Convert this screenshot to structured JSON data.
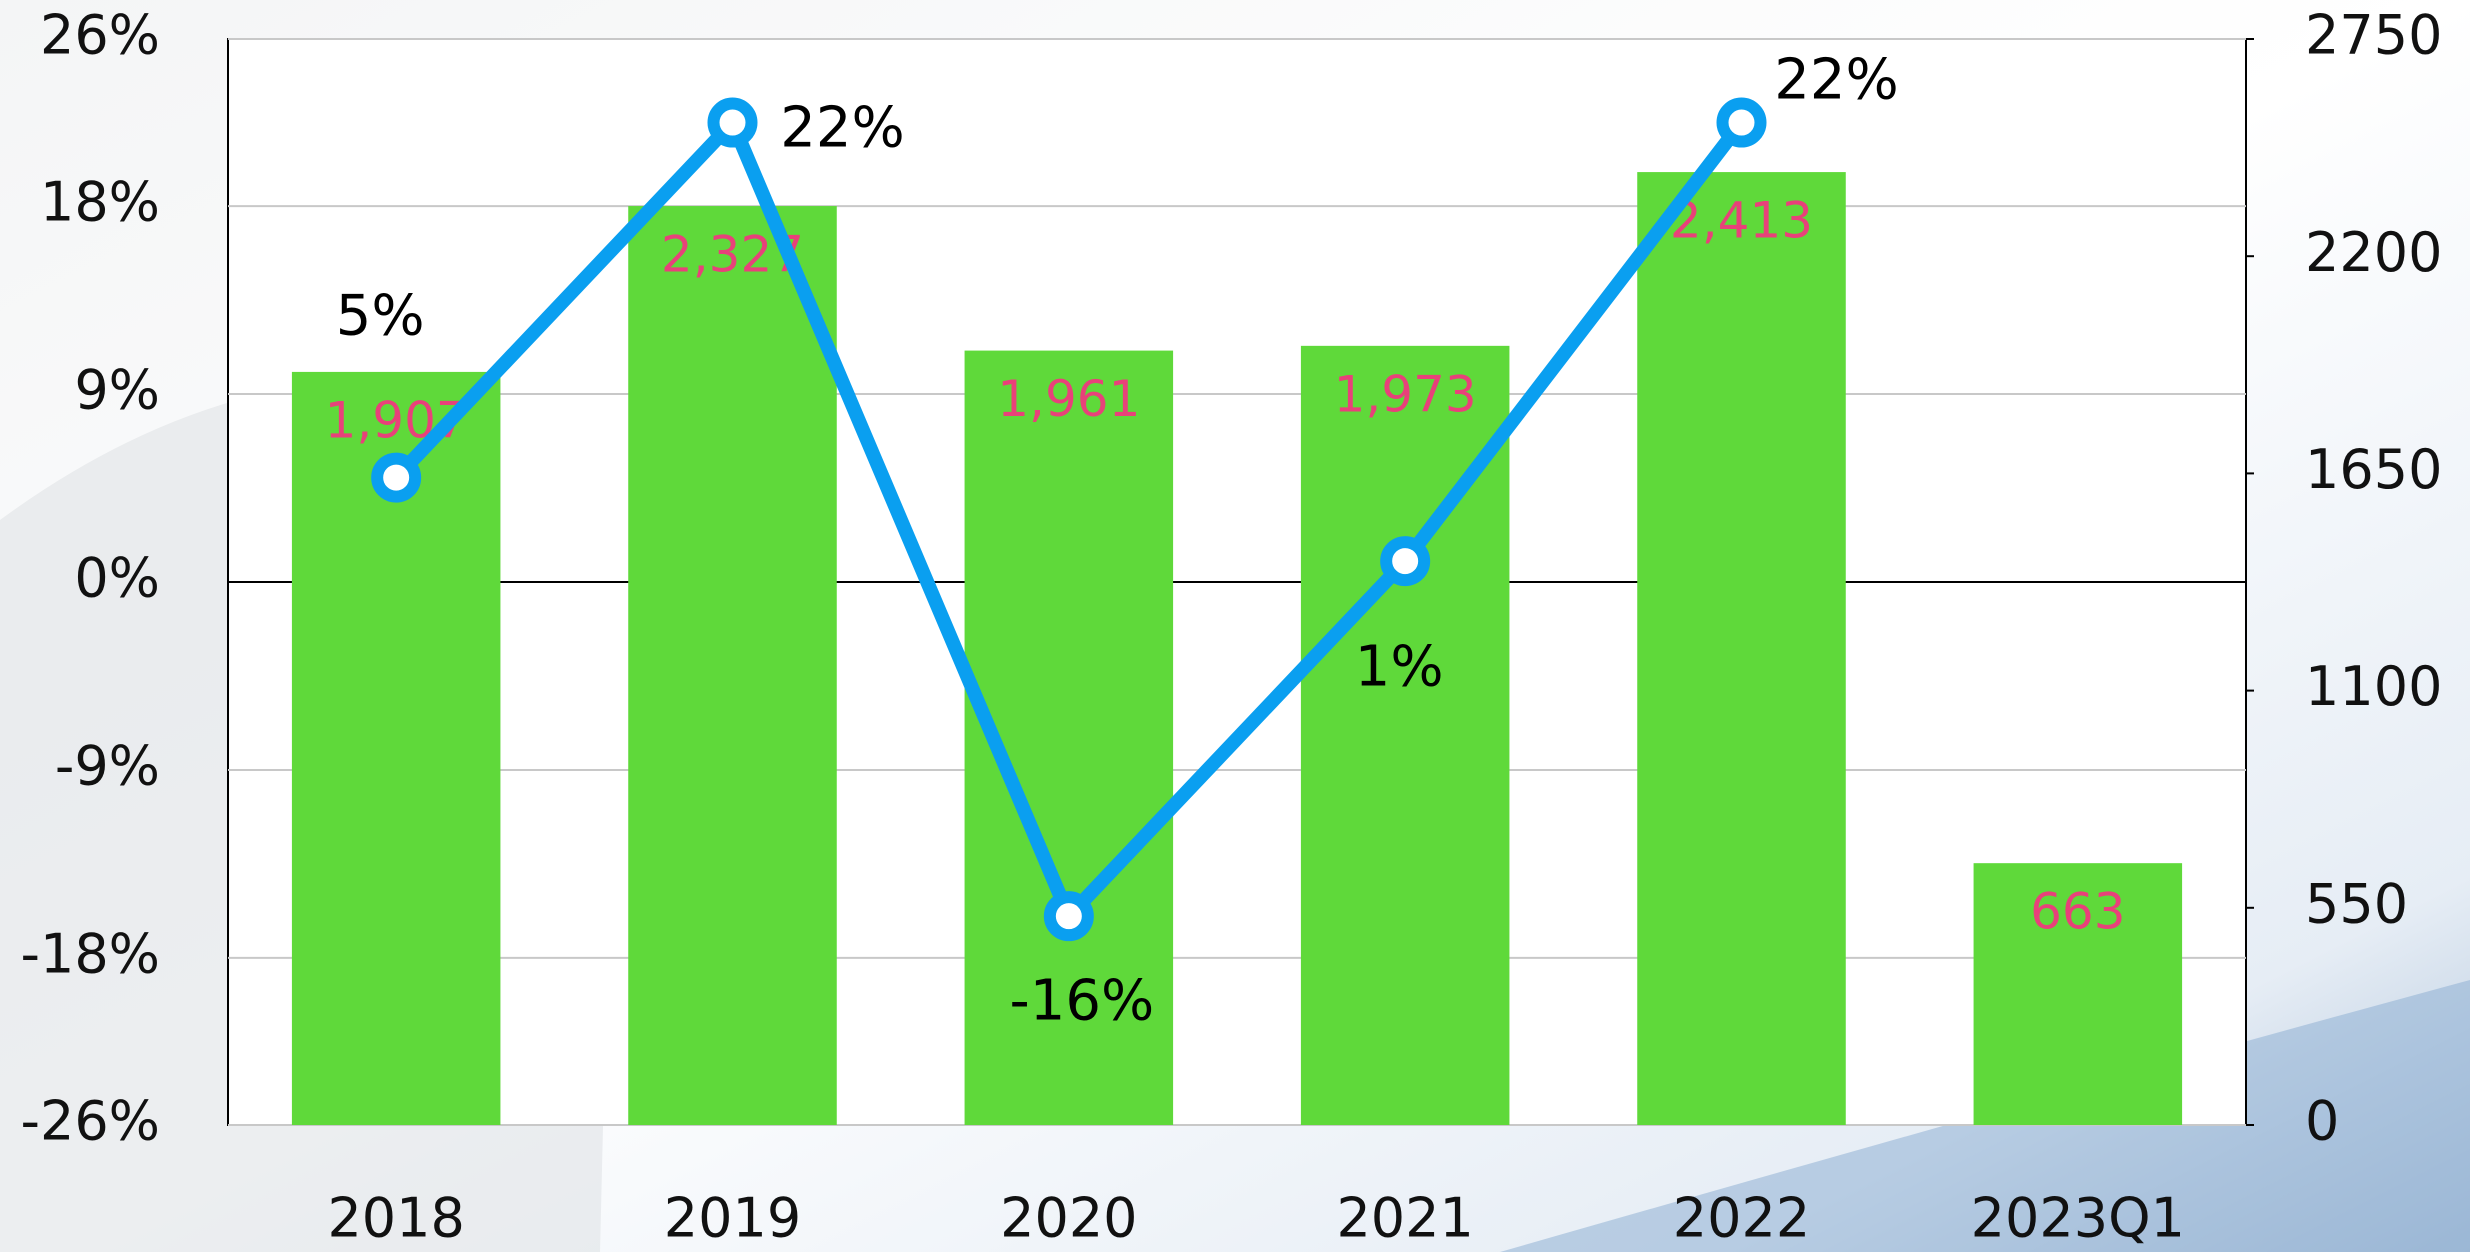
{
  "chart_data": {
    "type": "bar",
    "categories": [
      "2018",
      "2019",
      "2020",
      "2021",
      "2022",
      "2023Q1"
    ],
    "ylim": [
      -26,
      26
    ],
    "yticks": [
      {
        "value": 26,
        "label": "26%"
      },
      {
        "value": 18,
        "label": "18%"
      },
      {
        "value": 9,
        "label": "9%"
      },
      {
        "value": 0,
        "label": "0%"
      },
      {
        "value": -9,
        "label": "-9%"
      },
      {
        "value": -18,
        "label": "-18%"
      },
      {
        "value": -26,
        "label": "-26%"
      }
    ],
    "y2lim": [
      0,
      2750
    ],
    "y2ticks": [
      2750,
      2200,
      1650,
      1100,
      550,
      0
    ],
    "grid": true,
    "series": [
      {
        "type": "bar",
        "axis": "y2",
        "color": "#5fd93a",
        "label_color": "#e8417a",
        "values": [
          1907,
          2327,
          1961,
          1973,
          2413,
          663
        ],
        "value_labels": [
          "1,907",
          "2,327",
          "1,961",
          "1,973",
          "2,413",
          "663"
        ]
      },
      {
        "type": "line",
        "axis": "y",
        "color": "#0a9ff0",
        "label_color": "#000000",
        "values": [
          5,
          22,
          -16,
          1,
          22,
          null
        ],
        "value_labels": [
          "5%",
          "22%",
          "-16%",
          "1%",
          "22%",
          null
        ]
      }
    ]
  }
}
